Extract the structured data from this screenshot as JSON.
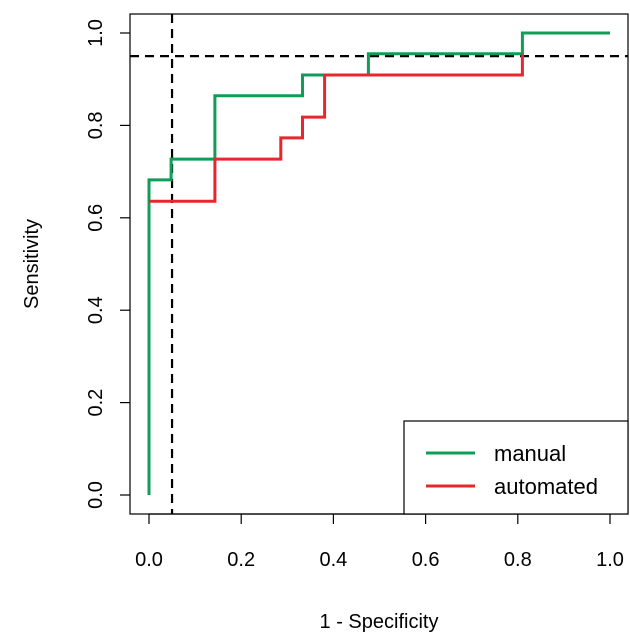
{
  "chart_data": {
    "type": "line",
    "title": "",
    "xlabel": "1 - Specificity",
    "ylabel": "Sensitivity",
    "xlim": [
      0.0,
      1.0
    ],
    "ylim": [
      0.0,
      1.0
    ],
    "xticks": [
      "0.0",
      "0.2",
      "0.4",
      "0.6",
      "0.8",
      "1.0"
    ],
    "yticks": [
      "0.0",
      "0.2",
      "0.4",
      "0.6",
      "0.8",
      "1.0"
    ],
    "grid": false,
    "legend_position": "bottom-right",
    "series": [
      {
        "name": "manual",
        "color": "#0f9d58",
        "step": true,
        "x": [
          0.0,
          0.0,
          0.048,
          0.048,
          0.143,
          0.143,
          0.333,
          0.333,
          0.476,
          0.476,
          0.81,
          0.81,
          1.0
        ],
        "y": [
          0.0,
          0.682,
          0.682,
          0.727,
          0.727,
          0.864,
          0.864,
          0.909,
          0.909,
          0.955,
          0.955,
          1.0,
          1.0
        ]
      },
      {
        "name": "automated",
        "color": "#e8262d",
        "step": true,
        "x": [
          0.0,
          0.0,
          0.143,
          0.143,
          0.286,
          0.286,
          0.333,
          0.333,
          0.381,
          0.381,
          0.81,
          0.81
        ],
        "y": [
          0.636,
          0.636,
          0.636,
          0.727,
          0.727,
          0.773,
          0.773,
          0.818,
          0.818,
          0.909,
          0.909,
          0.955
        ]
      }
    ],
    "reference_lines": [
      {
        "orientation": "vertical",
        "value": 0.05,
        "style": "dashed",
        "color": "#000000"
      },
      {
        "orientation": "horizontal",
        "value": 0.95,
        "style": "dashed",
        "color": "#000000"
      }
    ]
  }
}
